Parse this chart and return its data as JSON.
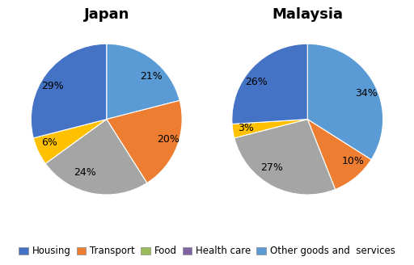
{
  "japan": {
    "title": "Japan",
    "values": [
      21,
      20,
      24,
      6,
      29
    ],
    "labels": [
      "21%",
      "20%",
      "24%",
      "6%",
      "29%"
    ],
    "colors": [
      "#5B9BD5",
      "#ED7D31",
      "#A5A5A5",
      "#FFC000",
      "#4472C4"
    ],
    "startangle": 90
  },
  "malaysia": {
    "title": "Malaysia",
    "values": [
      34,
      10,
      27,
      3,
      26
    ],
    "labels": [
      "34%",
      "10%",
      "27%",
      "3%",
      "26%"
    ],
    "colors": [
      "#5B9BD5",
      "#ED7D31",
      "#A5A5A5",
      "#FFC000",
      "#4472C4"
    ],
    "startangle": 90
  },
  "legend_labels": [
    "Housing",
    "Transport",
    "Food",
    "Health care",
    "Other goods and  services"
  ],
  "legend_colors": [
    "#4472C4",
    "#ED7D31",
    "#9BBB59",
    "#8064A2",
    "#5B9BD5"
  ],
  "background_color": "#FFFFFF",
  "title_fontsize": 13,
  "label_fontsize": 9,
  "legend_fontsize": 8.5
}
